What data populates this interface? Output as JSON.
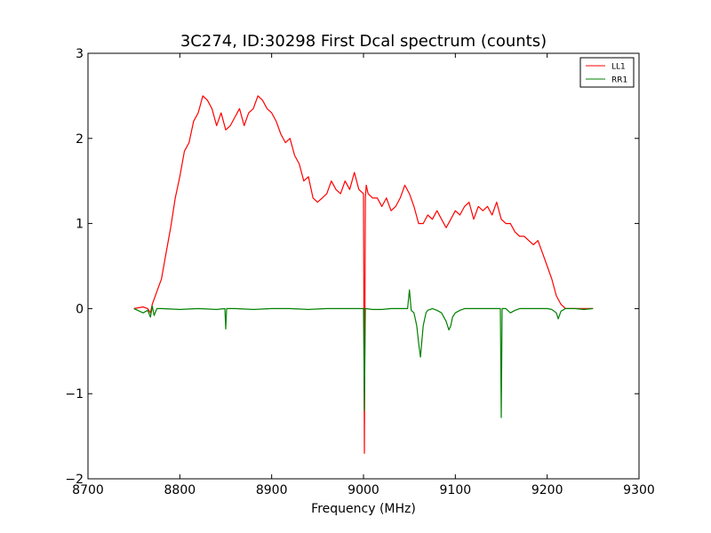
{
  "chart_data": {
    "type": "line",
    "title": "3C274, ID:30298 First Dcal spectrum (counts)",
    "xlabel": "Frequency (MHz)",
    "ylabel": "",
    "xlim": [
      8700,
      9300
    ],
    "ylim": [
      -2,
      3
    ],
    "xticks": [
      8700,
      8800,
      8900,
      9000,
      9100,
      9200,
      9300
    ],
    "yticks": [
      -2,
      -1,
      0,
      1,
      2,
      3
    ],
    "xtick_labels": [
      "8700",
      "8800",
      "8900",
      "9000",
      "9100",
      "9200",
      "9300"
    ],
    "ytick_labels": [
      "−2",
      "−1",
      "0",
      "1",
      "2",
      "3"
    ],
    "grid": false,
    "legend_position": "top-right",
    "series": [
      {
        "name": "LL1",
        "color": "#ff0000",
        "x": [
          8750,
          8760,
          8765,
          8768,
          8770,
          8775,
          8780,
          8785,
          8790,
          8795,
          8800,
          8805,
          8810,
          8815,
          8820,
          8825,
          8830,
          8835,
          8840,
          8845,
          8850,
          8855,
          8860,
          8865,
          8870,
          8875,
          8880,
          8885,
          8890,
          8895,
          8900,
          8905,
          8910,
          8915,
          8920,
          8925,
          8930,
          8935,
          8940,
          8945,
          8950,
          8955,
          8960,
          8965,
          8970,
          8975,
          8980,
          8985,
          8990,
          8995,
          9000,
          9001,
          9002,
          9003,
          9005,
          9010,
          9015,
          9020,
          9025,
          9030,
          9035,
          9040,
          9045,
          9050,
          9055,
          9060,
          9065,
          9070,
          9075,
          9080,
          9085,
          9090,
          9095,
          9100,
          9105,
          9110,
          9115,
          9120,
          9125,
          9130,
          9135,
          9140,
          9145,
          9150,
          9155,
          9160,
          9165,
          9170,
          9175,
          9180,
          9185,
          9190,
          9195,
          9200,
          9205,
          9210,
          9215,
          9220,
          9225,
          9230,
          9240,
          9250
        ],
        "values": [
          0.0,
          0.02,
          0.0,
          -0.05,
          0.05,
          0.2,
          0.35,
          0.65,
          0.95,
          1.3,
          1.55,
          1.85,
          1.95,
          2.2,
          2.3,
          2.5,
          2.45,
          2.35,
          2.15,
          2.3,
          2.1,
          2.15,
          2.25,
          2.35,
          2.15,
          2.3,
          2.35,
          2.5,
          2.45,
          2.35,
          2.3,
          2.2,
          2.05,
          1.95,
          2.0,
          1.8,
          1.7,
          1.5,
          1.55,
          1.3,
          1.25,
          1.3,
          1.35,
          1.5,
          1.4,
          1.35,
          1.5,
          1.4,
          1.6,
          1.4,
          1.35,
          -1.7,
          1.3,
          1.45,
          1.35,
          1.3,
          1.3,
          1.2,
          1.3,
          1.15,
          1.2,
          1.3,
          1.45,
          1.35,
          1.2,
          1.0,
          1.0,
          1.1,
          1.05,
          1.15,
          1.05,
          0.95,
          1.05,
          1.15,
          1.1,
          1.2,
          1.25,
          1.05,
          1.2,
          1.15,
          1.2,
          1.1,
          1.25,
          1.05,
          1.0,
          1.0,
          0.9,
          0.85,
          0.85,
          0.8,
          0.75,
          0.8,
          0.65,
          0.5,
          0.35,
          0.15,
          0.05,
          0.0,
          0.0,
          0.0,
          0.0,
          0.0
        ]
      },
      {
        "name": "RR1",
        "color": "#008000",
        "x": [
          8750,
          8760,
          8765,
          8768,
          8770,
          8772,
          8775,
          8780,
          8800,
          8820,
          8840,
          8849,
          8850,
          8851,
          8860,
          8880,
          8900,
          8920,
          8940,
          8960,
          8980,
          9000,
          9001,
          9002,
          9010,
          9020,
          9030,
          9040,
          9048,
          9050,
          9052,
          9055,
          9058,
          9060,
          9062,
          9065,
          9068,
          9070,
          9075,
          9080,
          9085,
          9090,
          9093,
          9095,
          9097,
          9100,
          9105,
          9110,
          9120,
          9130,
          9140,
          9149,
          9150,
          9151,
          9155,
          9160,
          9165,
          9170,
          9180,
          9190,
          9200,
          9205,
          9210,
          9212,
          9215,
          9220,
          9230,
          9240,
          9250
        ],
        "values": [
          0.0,
          -0.05,
          -0.02,
          -0.1,
          0.03,
          -0.08,
          0.0,
          0.0,
          -0.01,
          0.0,
          -0.01,
          0.0,
          -0.24,
          0.0,
          0.0,
          -0.01,
          0.0,
          0.0,
          -0.01,
          0.0,
          0.0,
          0.0,
          -1.2,
          0.0,
          -0.01,
          -0.01,
          0.0,
          0.0,
          0.0,
          0.22,
          -0.02,
          -0.05,
          -0.2,
          -0.4,
          -0.57,
          -0.2,
          -0.05,
          -0.02,
          0.0,
          -0.02,
          -0.05,
          -0.15,
          -0.25,
          -0.2,
          -0.1,
          -0.05,
          -0.02,
          0.0,
          0.0,
          0.0,
          0.0,
          0.0,
          -1.28,
          0.0,
          0.0,
          -0.05,
          -0.02,
          0.0,
          0.0,
          0.0,
          0.0,
          -0.01,
          -0.05,
          -0.12,
          -0.03,
          0.0,
          0.0,
          -0.01,
          0.0
        ]
      }
    ]
  }
}
